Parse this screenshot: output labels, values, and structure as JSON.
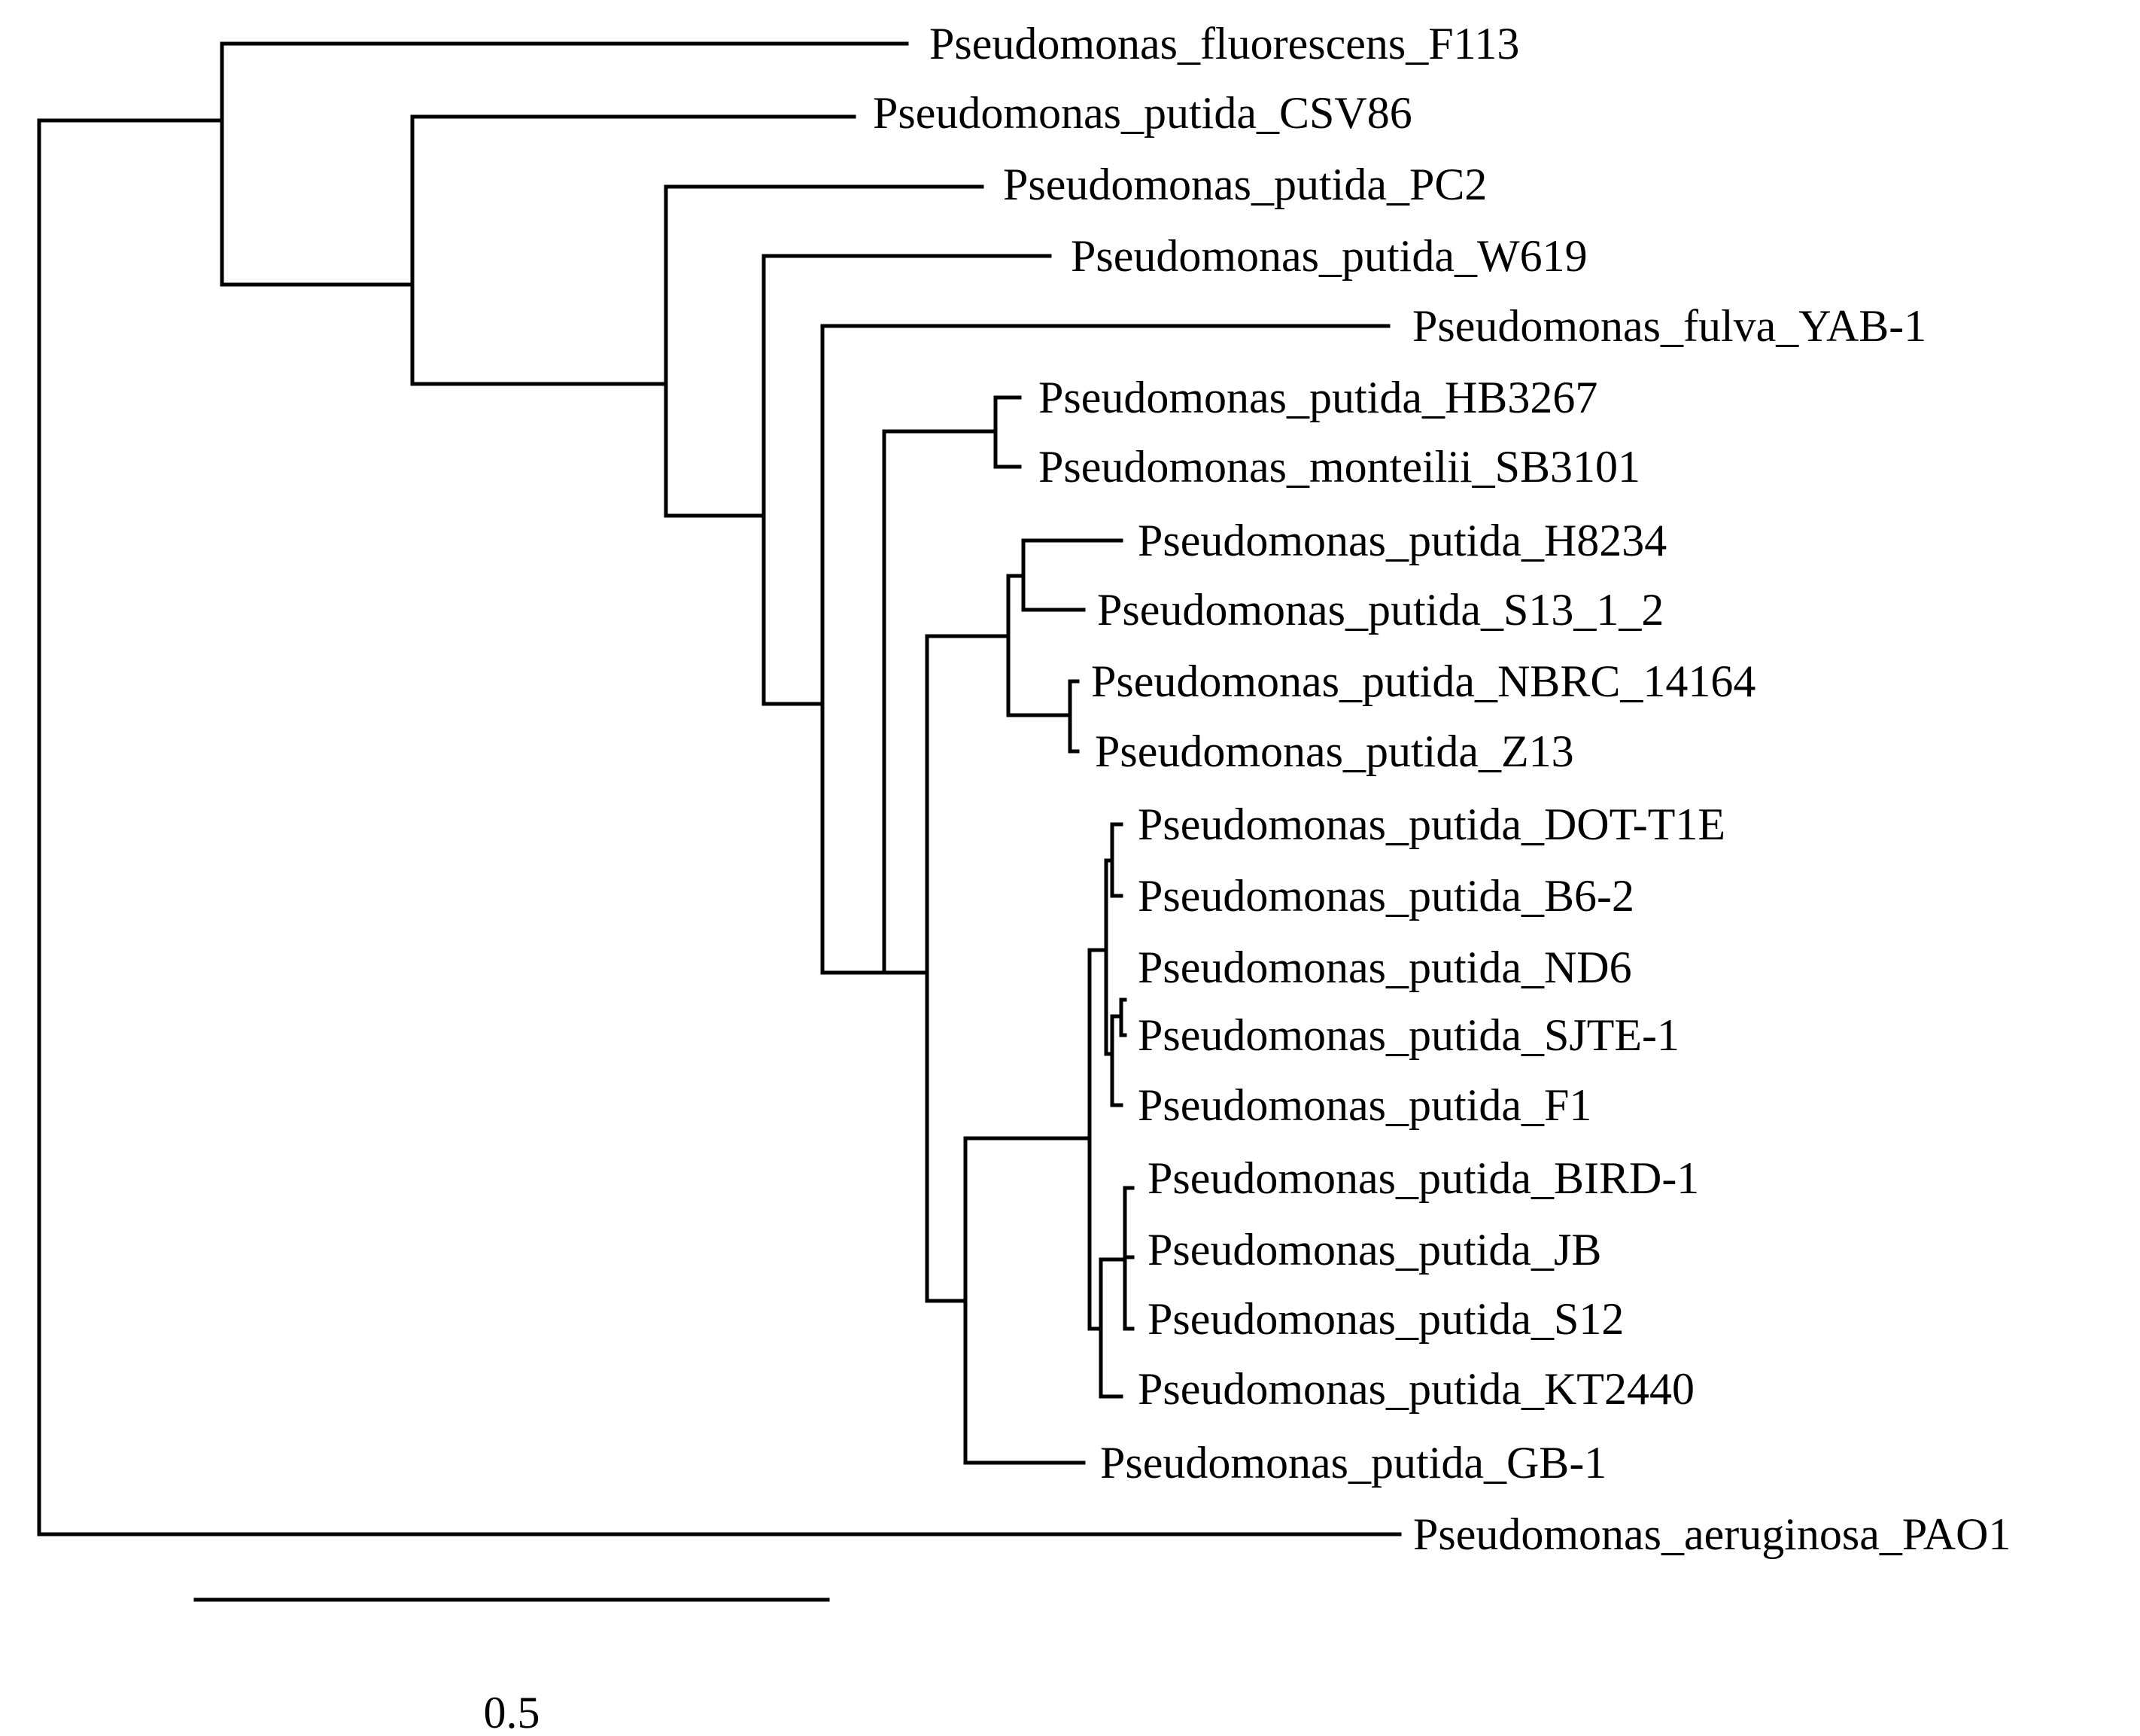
{
  "diagram": {
    "type": "phylogenetic_tree",
    "line_color": "#000000"
  },
  "leaves": [
    "Pseudomonas_fluorescens_F113",
    "Pseudomonas_putida_CSV86",
    "Pseudomonas_putida_PC2",
    "Pseudomonas_putida_W619",
    "Pseudomonas_fulva_YAB-1",
    "Pseudomonas_putida_HB3267",
    "Pseudomonas_monteilii_SB3101",
    "Pseudomonas_putida_H8234",
    "Pseudomonas_putida_S13_1_2",
    "Pseudomonas_putida_NBRC_14164",
    "Pseudomonas_putida_Z13",
    "Pseudomonas_putida_DOT-T1E",
    "Pseudomonas_putida_B6-2",
    "Pseudomonas_putida_ND6",
    "Pseudomonas_putida_SJTE-1",
    "Pseudomonas_putida_F1",
    "Pseudomonas_putida_BIRD-1",
    "Pseudomonas_putida_JB",
    "Pseudomonas_putida_S12",
    "Pseudomonas_putida_KT2440",
    "Pseudomonas_putida_GB-1",
    "Pseudomonas_aeruginosa_PAO1"
  ],
  "scale_bar": {
    "label": "0.5",
    "length": 0.5
  }
}
